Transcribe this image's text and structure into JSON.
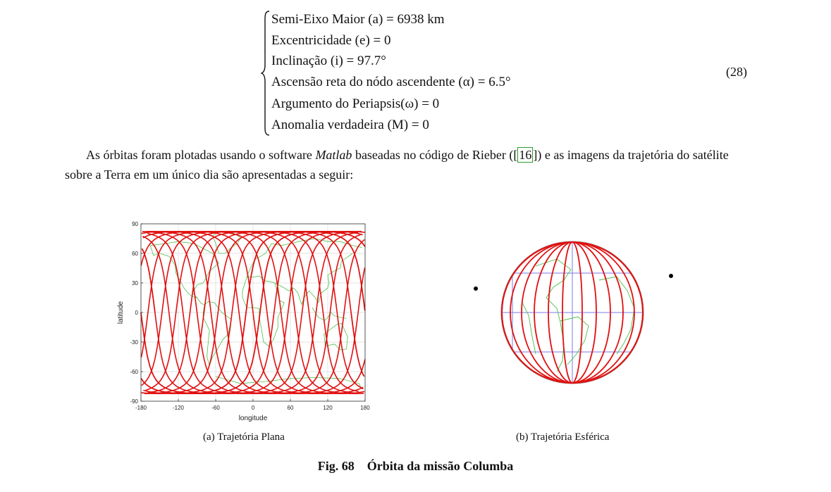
{
  "equations": {
    "lines": [
      "Semi-Eixo Maior (a) = 6938 km",
      "Excentricidade (e) = 0",
      "Inclinação (i) = 97.7°",
      "Ascensão reta do nódo ascendente (α) = 6.5°",
      "Argumento do Periapsis(ω) = 0",
      "Anomalia verdadeira (M) = 0"
    ],
    "number": "(28)"
  },
  "paragraph": {
    "before_cite": "As órbitas foram plotadas usando o software ",
    "software": "Matlab",
    "middle": " baseadas no código de Rieber ([",
    "cite": "16",
    "after_cite": "]) e as imagens da trajetória do satélite sobre a Terra em um único dia são apresentadas a seguir:"
  },
  "figure": {
    "caption_number": "Fig. 68",
    "caption_text": "Órbita da missão Columba",
    "subfigures": [
      {
        "caption": "(a) Trajetória Plana"
      },
      {
        "caption": "(b) Trajetória Esférica"
      }
    ]
  },
  "chart_data": {
    "type": "line",
    "xlabel": "longitude",
    "ylabel": "latitude",
    "xlim": [
      -180,
      180
    ],
    "ylim": [
      -90,
      90
    ],
    "xticks": [
      "-180",
      "-120",
      "-60",
      "0",
      "60",
      "120",
      "180"
    ],
    "yticks": [
      "90",
      "60",
      "30",
      "0",
      "-30",
      "-60",
      "-90"
    ],
    "grid": true,
    "inclination_deg": 97.7,
    "ground_track_passes": 16,
    "track_color": "#e01010",
    "coastline_color": "#4cc24c",
    "grid_color": "#d8d8d8"
  }
}
